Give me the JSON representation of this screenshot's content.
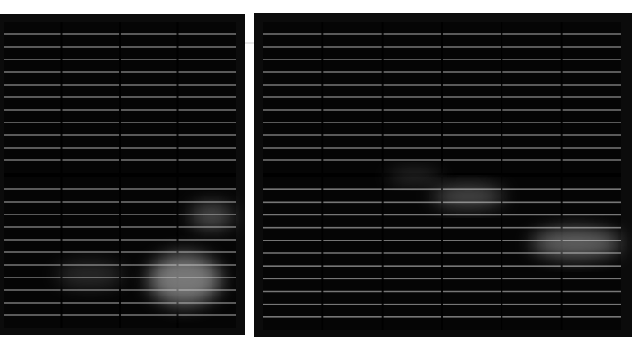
{
  "image": {
    "kind": "electroluminescence-photo",
    "subject": "solar-panels",
    "panel_count": 2,
    "background_color": "#ffffff",
    "frame_color": "#0b0b0b",
    "cell_color": "#050505",
    "busbar_color": "#e6e6e6",
    "finger_color": "#8a8a8a",
    "glow_color": "#d6d6d6"
  },
  "panels": [
    {
      "name": "left-panel",
      "busbar_count": 4,
      "halves": 2,
      "finger_rows_per_half": 12,
      "hotspot_count": 3
    },
    {
      "name": "right-panel",
      "busbar_count": 5,
      "halves": 2,
      "finger_rows_per_half": 12,
      "hotspot_count": 3
    }
  ]
}
